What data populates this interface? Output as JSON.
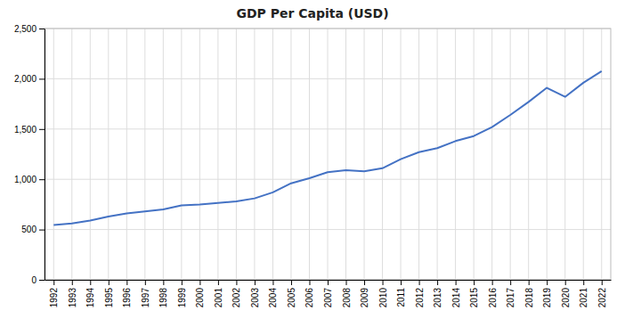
{
  "chart_data": {
    "type": "line",
    "title": "GDP Per Capita (USD)",
    "x": [
      1992,
      1993,
      1994,
      1995,
      1996,
      1997,
      1998,
      1999,
      2000,
      2001,
      2002,
      2003,
      2004,
      2005,
      2006,
      2007,
      2008,
      2009,
      2010,
      2011,
      2012,
      2013,
      2014,
      2015,
      2016,
      2017,
      2018,
      2019,
      2020,
      2021,
      2022
    ],
    "values": [
      545,
      560,
      590,
      630,
      660,
      680,
      700,
      740,
      750,
      765,
      780,
      810,
      870,
      960,
      1010,
      1070,
      1090,
      1080,
      1110,
      1200,
      1270,
      1310,
      1380,
      1430,
      1520,
      1640,
      1770,
      1910,
      1820,
      1960,
      2075
    ],
    "color": "#4472c4",
    "xlim": [
      1991.5,
      2022.5
    ],
    "xticks": [
      1992,
      1993,
      1994,
      1995,
      1996,
      1997,
      1998,
      1999,
      2000,
      2001,
      2002,
      2003,
      2004,
      2005,
      2006,
      2007,
      2008,
      2009,
      2010,
      2011,
      2012,
      2013,
      2014,
      2015,
      2016,
      2017,
      2018,
      2019,
      2020,
      2021,
      2022
    ],
    "ylim": [
      0,
      2500
    ],
    "yticks": [
      0,
      500,
      {
        "value": 1000,
        "label": "1,000"
      },
      {
        "value": 1500,
        "label": "1,500"
      },
      {
        "value": 2000,
        "label": "2,000"
      },
      {
        "value": 2500,
        "label": "2,500"
      }
    ],
    "grid": true
  }
}
